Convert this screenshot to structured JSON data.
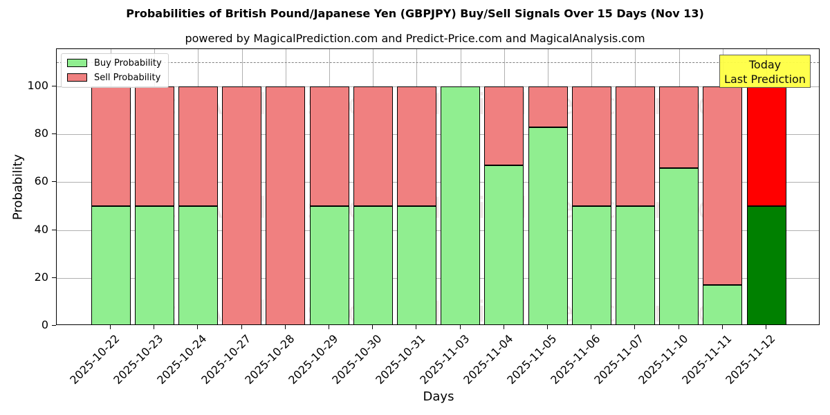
{
  "chart_data": {
    "type": "bar",
    "stacked": true,
    "title": "Probabilities of British Pound/Japanese Yen (GBPJPY) Buy/Sell Signals Over 15 Days (Nov 13)",
    "subtitle": "powered by MagicalPrediction.com and Predict-Price.com and MagicalAnalysis.com",
    "xlabel": "Days",
    "ylabel": "Probability",
    "ylim": [
      0,
      115
    ],
    "yticks": [
      0,
      20,
      40,
      60,
      80,
      100
    ],
    "grid": true,
    "legend_position": "upper left",
    "reference_line": {
      "y": 110,
      "style": "dashed",
      "color": "#808080"
    },
    "annotation": {
      "text_line1": "Today",
      "text_line2": "Last Prediction",
      "background": "#ffff44"
    },
    "categories": [
      "2025-10-22",
      "2025-10-23",
      "2025-10-24",
      "2025-10-27",
      "2025-10-28",
      "2025-10-29",
      "2025-10-30",
      "2025-10-31",
      "2025-11-03",
      "2025-11-04",
      "2025-11-05",
      "2025-11-06",
      "2025-11-07",
      "2025-11-10",
      "2025-11-11",
      "2025-11-12"
    ],
    "series": [
      {
        "name": "Buy Probability",
        "color": "#90ee90",
        "last_color": "#008000",
        "values": [
          50,
          50,
          50,
          0,
          0,
          50,
          50,
          50,
          100,
          67,
          83,
          50,
          50,
          66,
          17,
          50
        ]
      },
      {
        "name": "Sell Probability",
        "color": "#f08080",
        "last_color": "#ff0000",
        "values": [
          50,
          50,
          50,
          100,
          100,
          50,
          50,
          50,
          0,
          33,
          17,
          50,
          50,
          34,
          83,
          50
        ]
      }
    ],
    "watermarks": [
      "MagicalAnalysis.com",
      "MagicalPrediction.com"
    ]
  }
}
